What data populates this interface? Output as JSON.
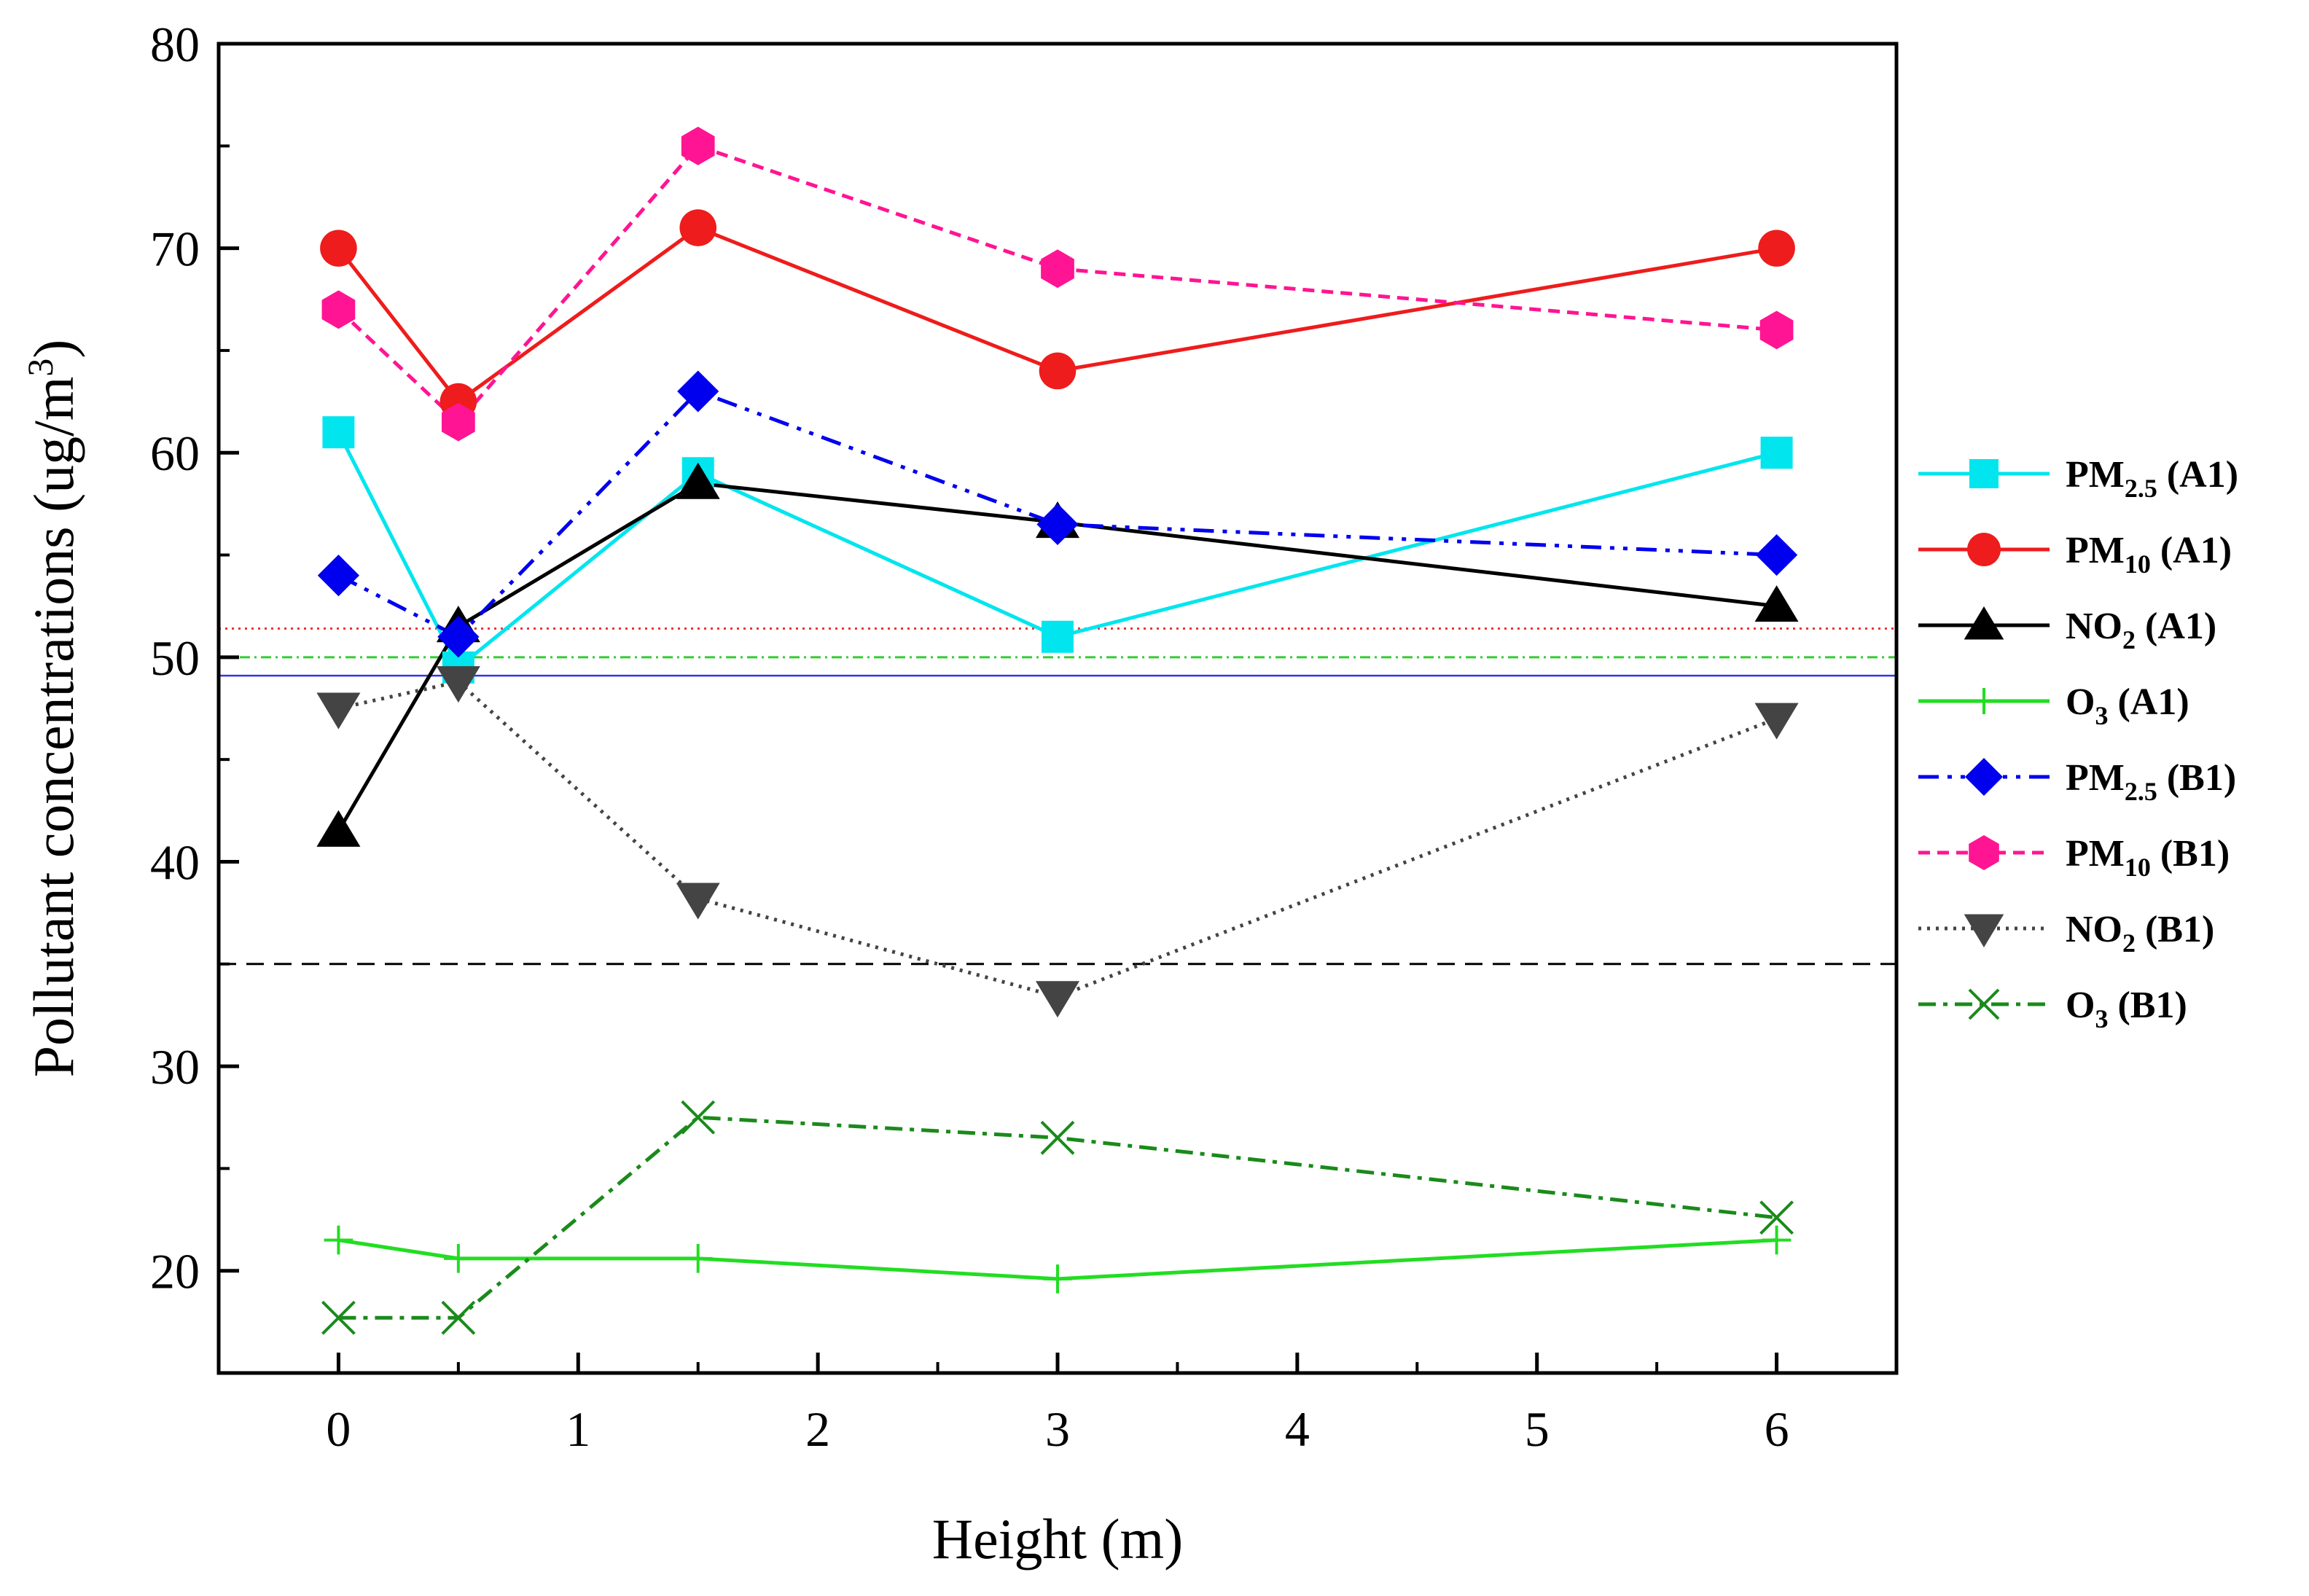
{
  "chart_data": {
    "type": "line",
    "title": "",
    "xlabel": "Height (m)",
    "ylabel_base": "Pollutant concentrations (ug/m",
    "ylabel_sup": "3",
    "ylabel_end": ")",
    "xlim": [
      -0.5,
      6.5
    ],
    "ylim": [
      15,
      80
    ],
    "xticks": [
      0,
      1,
      2,
      3,
      4,
      5,
      6
    ],
    "yticks": [
      20,
      30,
      40,
      50,
      60,
      70,
      80
    ],
    "x": [
      0,
      0.5,
      1.5,
      3,
      6
    ],
    "series": [
      {
        "name": "PM2.5 (A1)",
        "label_main": "PM",
        "label_sub": "2.5",
        "label_tail": " (A1)",
        "color": "#00e5ee",
        "marker": "square",
        "dash": "",
        "values": [
          61,
          49.5,
          59,
          51,
          60
        ]
      },
      {
        "name": "PM10 (A1)",
        "label_main": "PM",
        "label_sub": "10",
        "label_tail": " (A1)",
        "color": "#ee1c1c",
        "marker": "circle",
        "dash": "",
        "values": [
          70,
          62.5,
          71,
          64,
          70
        ]
      },
      {
        "name": "NO2 (A1)",
        "label_main": "NO",
        "label_sub": "2",
        "label_tail": " (A1)",
        "color": "#000000",
        "marker": "triangle-up",
        "dash": "",
        "values": [
          41.5,
          51.5,
          58.5,
          56.6,
          52.5
        ]
      },
      {
        "name": "O3 (A1)",
        "label_main": "O",
        "label_sub": "3",
        "label_tail": " (A1)",
        "color": "#22dd22",
        "marker": "plus",
        "dash": "",
        "values": [
          21.5,
          20.6,
          20.6,
          19.6,
          21.5
        ]
      },
      {
        "name": "PM2.5 (B1)",
        "label_main": "PM",
        "label_sub": "2.5",
        "label_tail": " (B1)",
        "color": "#0000ee",
        "marker": "diamond",
        "dash": "28 12 6 12 6 12",
        "values": [
          54,
          51,
          63,
          56.5,
          55
        ]
      },
      {
        "name": "PM10 (B1)",
        "label_main": "PM",
        "label_sub": "10",
        "label_tail": " (B1)",
        "color": "#ff1493",
        "marker": "hexagon",
        "dash": "16 10",
        "values": [
          67,
          61.5,
          75,
          69,
          66
        ]
      },
      {
        "name": "NO2 (B1)",
        "label_main": "NO",
        "label_sub": "2",
        "label_tail": " (B1)",
        "color": "#444444",
        "marker": "triangle-down",
        "dash": "4 8",
        "values": [
          47.5,
          48.8,
          38.2,
          33.4,
          47
        ]
      },
      {
        "name": "O3 (B1)",
        "label_main": "O",
        "label_sub": "3",
        "label_tail": " (B1)",
        "color": "#1a8a1a",
        "marker": "x",
        "dash": "24 10 6 10",
        "values": [
          17.7,
          17.7,
          27.5,
          26.5,
          22.6
        ]
      }
    ],
    "reference_lines": [
      {
        "name": "red-dotted-reference",
        "y": 51.4,
        "color": "#ee3333",
        "dash": "3 6"
      },
      {
        "name": "green-dashdot-reference",
        "y": 50,
        "color": "#33cc33",
        "dash": "14 6 3 6"
      },
      {
        "name": "blue-solid-reference",
        "y": 49.1,
        "color": "#3333ee",
        "dash": ""
      },
      {
        "name": "black-dashed-reference",
        "y": 35,
        "color": "#000000",
        "dash": "24 14"
      }
    ],
    "legend": "right",
    "grid": false
  }
}
